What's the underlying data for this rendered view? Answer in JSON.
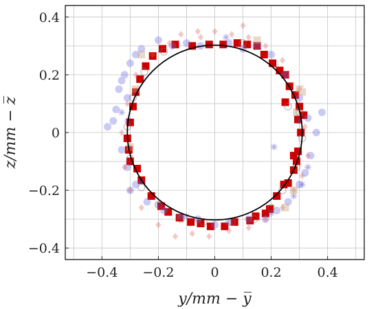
{
  "chart_data": {
    "type": "scatter",
    "xlabel": "y/mm − y̅",
    "ylabel": "z/mm − z̅",
    "xlim": [
      -0.53,
      0.53
    ],
    "ylim": [
      -0.44,
      0.44
    ],
    "xticks": [
      -0.4,
      -0.2,
      0,
      0.2,
      0.4
    ],
    "xtick_labels": [
      "−0.4",
      "−0.2",
      "0",
      "0.2",
      "0.4"
    ],
    "yticks": [
      -0.4,
      -0.2,
      0,
      0.2,
      0.4
    ],
    "ytick_labels": [
      "−0.4",
      "−0.2",
      "0",
      "0.2",
      "0.4"
    ],
    "grid": true,
    "reference_circle": {
      "center": [
        0,
        0
      ],
      "radius": 0.31,
      "color": "#000000"
    },
    "series": [
      {
        "marker": "square",
        "color": "#cc0000",
        "opacity": 1.0,
        "x": [
          0.295,
          0.305,
          0.295,
          0.29,
          0.28,
          0.26,
          0.245,
          0.22,
          0.195,
          0.18,
          0.145,
          0.125,
          0.07,
          0.035,
          -0.015,
          -0.05,
          -0.085,
          -0.125,
          -0.165,
          -0.19,
          -0.225,
          -0.26,
          -0.275,
          -0.3,
          -0.305,
          -0.31,
          -0.3,
          -0.29,
          -0.28,
          -0.265,
          -0.245,
          -0.22,
          -0.185,
          -0.14,
          -0.08,
          -0.02,
          0.03,
          0.08,
          0.115,
          0.15,
          0.175,
          0.205,
          0.23,
          0.25,
          0.265,
          0.285,
          0.3,
          0.315,
          0.28,
          0.25
        ],
        "y": [
          0.045,
          0.0,
          -0.065,
          -0.1,
          -0.13,
          -0.175,
          -0.18,
          -0.22,
          -0.265,
          -0.28,
          -0.29,
          -0.305,
          -0.31,
          -0.325,
          -0.325,
          -0.315,
          -0.31,
          -0.295,
          -0.275,
          -0.255,
          -0.22,
          -0.165,
          -0.125,
          -0.1,
          -0.06,
          -0.02,
          0.035,
          0.09,
          0.14,
          0.185,
          0.23,
          0.265,
          0.29,
          0.305,
          0.3,
          0.305,
          0.305,
          0.31,
          0.305,
          0.3,
          0.27,
          0.24,
          0.215,
          0.2,
          0.16,
          0.13,
          0.09,
          0.06,
          -0.08,
          0.105
        ]
      },
      {
        "marker": "circle",
        "color": "#6b6be0",
        "opacity": 0.35,
        "x": [
          -0.38,
          -0.35,
          -0.34,
          -0.32,
          -0.3,
          -0.31,
          -0.28,
          -0.26,
          -0.2,
          -0.15,
          -0.1,
          -0.05,
          0.05,
          0.1,
          0.15,
          0.2,
          0.25,
          0.3,
          0.33,
          0.36,
          0.38,
          0.34,
          0.32,
          0.3,
          0.26,
          0.22,
          0.18,
          0.12,
          0.05,
          0.0,
          -0.06,
          -0.12,
          -0.18,
          -0.24,
          -0.28,
          -0.31,
          -0.33,
          -0.36,
          -0.33,
          -0.3
        ],
        "y": [
          0.02,
          0.08,
          0.15,
          0.2,
          0.24,
          0.12,
          0.27,
          0.29,
          0.32,
          0.3,
          0.31,
          0.3,
          0.31,
          0.29,
          0.3,
          0.27,
          0.2,
          0.12,
          0.05,
          0.0,
          0.07,
          -0.08,
          -0.14,
          -0.18,
          -0.24,
          -0.27,
          -0.3,
          -0.3,
          -0.31,
          -0.32,
          -0.3,
          -0.29,
          -0.27,
          -0.24,
          -0.18,
          -0.12,
          -0.06,
          0.04,
          0.18,
          -0.2
        ]
      },
      {
        "marker": "diamond",
        "color": "#e06060",
        "opacity": 0.35,
        "x": [
          -0.12,
          -0.05,
          0.0,
          0.06,
          0.12,
          0.18,
          0.24,
          0.3,
          0.32,
          0.33,
          0.31,
          0.28,
          0.24,
          0.18,
          0.12,
          0.05,
          -0.02,
          -0.08,
          -0.14,
          -0.2,
          -0.26,
          -0.3,
          -0.32,
          -0.33,
          -0.31,
          -0.28,
          -0.22,
          -0.16,
          -0.06,
          0.1
        ],
        "y": [
          0.34,
          0.33,
          0.35,
          0.34,
          0.33,
          0.3,
          0.25,
          0.15,
          0.02,
          -0.08,
          -0.15,
          -0.2,
          -0.26,
          -0.3,
          -0.33,
          -0.34,
          -0.36,
          -0.35,
          -0.36,
          -0.32,
          -0.26,
          -0.2,
          -0.12,
          0.0,
          0.1,
          0.2,
          0.27,
          0.31,
          0.35,
          0.37
        ]
      },
      {
        "marker": "ring",
        "color": "#777777",
        "opacity": 0.45,
        "x": [
          0.26,
          0.3,
          0.31,
          0.29,
          0.24,
          0.2,
          0.14,
          0.06,
          -0.04,
          -0.12,
          -0.2,
          -0.26,
          -0.3,
          -0.31,
          -0.29,
          -0.25,
          -0.18,
          0.1
        ],
        "y": [
          0.09,
          0.07,
          -0.02,
          -0.12,
          -0.2,
          -0.26,
          -0.3,
          -0.31,
          -0.31,
          -0.3,
          -0.25,
          -0.19,
          -0.09,
          0.02,
          0.12,
          0.21,
          0.28,
          0.31
        ]
      },
      {
        "marker": "star",
        "color": "#5050c0",
        "opacity": 0.45,
        "x": [
          0.21,
          0.3,
          0.33,
          0.31,
          0.28,
          0.2,
          -0.1,
          -0.2,
          -0.33,
          -0.31,
          -0.26,
          0.04
        ],
        "y": [
          -0.05,
          0.04,
          -0.12,
          -0.18,
          -0.22,
          -0.28,
          -0.29,
          -0.25,
          0.07,
          0.04,
          -0.17,
          0.33
        ]
      },
      {
        "marker": "square",
        "color": "#c8a080",
        "opacity": 0.4,
        "x": [
          0.3,
          0.29,
          0.28,
          -0.26,
          -0.28,
          -0.3,
          0.15,
          0.25,
          0.31
        ],
        "y": [
          0.15,
          0.07,
          -0.2,
          0.27,
          0.15,
          -0.05,
          0.32,
          -0.26,
          0.14
        ]
      }
    ]
  }
}
